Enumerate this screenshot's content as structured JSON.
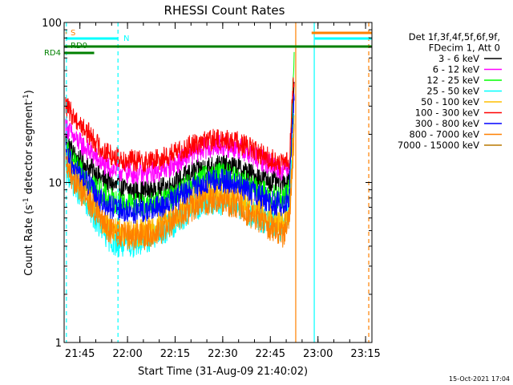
{
  "chart_data": {
    "type": "line",
    "title": "RHESSI Count Rates",
    "xlabel": "Start Time (31-Aug-09 21:40:02)",
    "ylabel_main": "Count Rate (s",
    "ylabel_sup1": "-1",
    "ylabel_mid": " detector segment",
    "ylabel_sup2": "-1",
    "ylabel_end": ")",
    "yscale": "log",
    "ylim": [
      1,
      100
    ],
    "xlim": [
      "21:40:02",
      "23:17:00"
    ],
    "x_ticks": [
      "21:45",
      "22:00",
      "22:15",
      "22:30",
      "22:45",
      "23:00",
      "23:15"
    ],
    "y_ticks": [
      "1",
      "10",
      "100"
    ],
    "timestamp": "15-Oct-2021 17:04",
    "legend": {
      "placement": "right",
      "header": [
        "Det 1f,3f,4f,5f,6f,9f,",
        "FDecim 1, Att 0"
      ],
      "entries": [
        {
          "label": "3 - 6 keV",
          "color": "#000000"
        },
        {
          "label": "6 - 12 keV",
          "color": "#ff00ff"
        },
        {
          "label": "12 - 25 keV",
          "color": "#00ff00"
        },
        {
          "label": "25 - 50 keV",
          "color": "#00ffff"
        },
        {
          "label": "50 - 100 keV",
          "color": "#ffbf00"
        },
        {
          "label": "100 - 300 keV",
          "color": "#ff0000"
        },
        {
          "label": "300 - 800 keV",
          "color": "#0000ff"
        },
        {
          "label": "800 - 7000 keV",
          "color": "#ff8000"
        },
        {
          "label": "7000 - 15000 keV",
          "color": "#b87800"
        }
      ]
    },
    "flags": [
      {
        "label": "S",
        "color": "#ff8000",
        "segments": [
          [
            "21:40:30",
            "21:40:45"
          ],
          [
            "22:58:00",
            "23:17:00"
          ]
        ]
      },
      {
        "label": "N",
        "color": "#00ffff",
        "segments": [
          [
            "21:40:30",
            "21:57:00"
          ],
          [
            "22:59:00",
            "23:17:00"
          ]
        ]
      },
      {
        "label": "RD0",
        "color": "#008000",
        "segments": [
          [
            "21:40:02",
            "23:17:00"
          ]
        ]
      },
      {
        "label": "RD4",
        "color": "#008000",
        "segments": [
          [
            "21:40:02",
            "21:49:30"
          ]
        ]
      }
    ],
    "vertical_markers": [
      {
        "time": "21:40:45",
        "color": "#00ffff",
        "style": "dashed"
      },
      {
        "time": "21:57:00",
        "color": "#00ffff",
        "style": "dashed"
      },
      {
        "time": "22:53:00",
        "color": "#ff8000",
        "style": "solid"
      },
      {
        "time": "22:58:50",
        "color": "#00ffff",
        "style": "solid"
      },
      {
        "time": "23:16:00",
        "color": "#ff8000",
        "style": "dashed"
      }
    ],
    "series": [
      {
        "name": "3 - 6 keV",
        "color": "#000000",
        "noise": 0.07,
        "points": [
          [
            "21:40:30",
            19
          ],
          [
            "21:43:00",
            15
          ],
          [
            "21:46:00",
            13
          ],
          [
            "21:49:00",
            12
          ],
          [
            "21:52:00",
            10.5
          ],
          [
            "21:56:00",
            9.5
          ],
          [
            "22:00:00",
            9
          ],
          [
            "22:05:00",
            8.8
          ],
          [
            "22:10:00",
            9
          ],
          [
            "22:15:00",
            10
          ],
          [
            "22:20:00",
            11.5
          ],
          [
            "22:25:00",
            12.5
          ],
          [
            "22:30:00",
            12.8
          ],
          [
            "22:35:00",
            12.3
          ],
          [
            "22:40:00",
            11
          ],
          [
            "22:45:00",
            10.2
          ],
          [
            "22:49:00",
            9.8
          ],
          [
            "22:51:00",
            11
          ],
          [
            "22:52:00",
            25
          ],
          [
            "22:52:30",
            40
          ]
        ]
      },
      {
        "name": "6 - 12 keV",
        "color": "#ff00ff",
        "noise": 0.07,
        "points": [
          [
            "21:40:30",
            23
          ],
          [
            "21:43:00",
            19
          ],
          [
            "21:46:00",
            17
          ],
          [
            "21:49:00",
            15
          ],
          [
            "21:52:00",
            13
          ],
          [
            "21:56:00",
            12
          ],
          [
            "22:00:00",
            11.5
          ],
          [
            "22:05:00",
            11.2
          ],
          [
            "22:10:00",
            11.8
          ],
          [
            "22:15:00",
            13
          ],
          [
            "22:20:00",
            15
          ],
          [
            "22:25:00",
            16.5
          ],
          [
            "22:30:00",
            17
          ],
          [
            "22:35:00",
            16.3
          ],
          [
            "22:40:00",
            14.5
          ],
          [
            "22:45:00",
            13
          ],
          [
            "22:49:00",
            12
          ],
          [
            "22:51:00",
            13
          ],
          [
            "22:52:00",
            30
          ],
          [
            "22:52:30",
            38
          ]
        ]
      },
      {
        "name": "12 - 25 keV",
        "color": "#00ff00",
        "noise": 0.08,
        "points": [
          [
            "21:40:30",
            16
          ],
          [
            "21:43:00",
            13
          ],
          [
            "21:46:00",
            11
          ],
          [
            "21:49:00",
            10
          ],
          [
            "21:52:00",
            8.5
          ],
          [
            "21:56:00",
            7.5
          ],
          [
            "22:00:00",
            7.3
          ],
          [
            "22:05:00",
            7.2
          ],
          [
            "22:10:00",
            7.5
          ],
          [
            "22:15:00",
            8.3
          ],
          [
            "22:20:00",
            9.8
          ],
          [
            "22:25:00",
            11
          ],
          [
            "22:30:00",
            11.2
          ],
          [
            "22:35:00",
            10.6
          ],
          [
            "22:40:00",
            9.2
          ],
          [
            "22:45:00",
            8.2
          ],
          [
            "22:49:00",
            7.8
          ],
          [
            "22:51:00",
            9
          ],
          [
            "22:52:00",
            35
          ],
          [
            "22:52:30",
            70
          ]
        ]
      },
      {
        "name": "25 - 50 keV",
        "color": "#00ffff",
        "noise": 0.09,
        "points": [
          [
            "21:40:30",
            12
          ],
          [
            "21:43:00",
            10
          ],
          [
            "21:46:00",
            8
          ],
          [
            "21:49:00",
            6.5
          ],
          [
            "21:52:00",
            5
          ],
          [
            "21:56:00",
            4.2
          ],
          [
            "22:00:00",
            4.1
          ],
          [
            "22:05:00",
            4.3
          ],
          [
            "22:10:00",
            4.8
          ],
          [
            "22:15:00",
            5.6
          ],
          [
            "22:20:00",
            6.8
          ],
          [
            "22:25:00",
            7.6
          ],
          [
            "22:30:00",
            7.7
          ],
          [
            "22:35:00",
            7.2
          ],
          [
            "22:40:00",
            6.2
          ],
          [
            "22:45:00",
            5.5
          ],
          [
            "22:49:00",
            5.2
          ],
          [
            "22:51:00",
            6.5
          ],
          [
            "22:52:00",
            18
          ],
          [
            "22:52:30",
            25
          ]
        ]
      },
      {
        "name": "50 - 100 keV",
        "color": "#ffbf00",
        "noise": 0.09,
        "points": [
          [
            "21:40:30",
            14
          ],
          [
            "21:43:00",
            11.5
          ],
          [
            "21:46:00",
            9
          ],
          [
            "21:49:00",
            7.3
          ],
          [
            "21:52:00",
            5.8
          ],
          [
            "21:56:00",
            5
          ],
          [
            "22:00:00",
            4.8
          ],
          [
            "22:05:00",
            4.9
          ],
          [
            "22:10:00",
            5.4
          ],
          [
            "22:15:00",
            6.3
          ],
          [
            "22:20:00",
            7.6
          ],
          [
            "22:25:00",
            8.5
          ],
          [
            "22:30:00",
            8.6
          ],
          [
            "22:35:00",
            8
          ],
          [
            "22:40:00",
            6.9
          ],
          [
            "22:45:00",
            6
          ],
          [
            "22:49:00",
            5.6
          ],
          [
            "22:51:00",
            6.8
          ],
          [
            "22:52:00",
            16
          ],
          [
            "22:52:30",
            22
          ]
        ]
      },
      {
        "name": "100 - 300 keV",
        "color": "#ff0000",
        "noise": 0.07,
        "points": [
          [
            "21:40:30",
            30
          ],
          [
            "21:43:00",
            26
          ],
          [
            "21:46:00",
            22
          ],
          [
            "21:49:00",
            19
          ],
          [
            "21:52:00",
            16
          ],
          [
            "21:56:00",
            14.5
          ],
          [
            "22:00:00",
            13.8
          ],
          [
            "22:05:00",
            13.5
          ],
          [
            "22:10:00",
            14
          ],
          [
            "22:15:00",
            15.2
          ],
          [
            "22:20:00",
            17
          ],
          [
            "22:25:00",
            18.3
          ],
          [
            "22:30:00",
            18.5
          ],
          [
            "22:35:00",
            17.8
          ],
          [
            "22:40:00",
            15.8
          ],
          [
            "22:45:00",
            14
          ],
          [
            "22:49:00",
            12.8
          ],
          [
            "22:51:00",
            14
          ],
          [
            "22:52:00",
            35
          ],
          [
            "22:52:30",
            45
          ]
        ]
      },
      {
        "name": "300 - 800 keV",
        "color": "#0000ff",
        "noise": 0.08,
        "points": [
          [
            "21:40:30",
            15
          ],
          [
            "21:43:00",
            12.5
          ],
          [
            "21:46:00",
            10.5
          ],
          [
            "21:49:00",
            9
          ],
          [
            "21:52:00",
            7.5
          ],
          [
            "21:56:00",
            6.8
          ],
          [
            "22:00:00",
            6.6
          ],
          [
            "22:05:00",
            6.6
          ],
          [
            "22:10:00",
            7
          ],
          [
            "22:15:00",
            7.8
          ],
          [
            "22:20:00",
            9
          ],
          [
            "22:25:00",
            10
          ],
          [
            "22:30:00",
            10.2
          ],
          [
            "22:35:00",
            9.6
          ],
          [
            "22:40:00",
            8.4
          ],
          [
            "22:45:00",
            7.6
          ],
          [
            "22:49:00",
            7.2
          ],
          [
            "22:51:00",
            8.5
          ],
          [
            "22:52:00",
            25
          ],
          [
            "22:52:30",
            32
          ]
        ]
      },
      {
        "name": "800 - 7000 keV",
        "color": "#ff8000",
        "noise": 0.09,
        "points": [
          [
            "21:40:30",
            12.5
          ],
          [
            "21:43:00",
            10.5
          ],
          [
            "21:46:00",
            8.5
          ],
          [
            "21:49:00",
            7
          ],
          [
            "21:52:00",
            5.6
          ],
          [
            "21:56:00",
            4.8
          ],
          [
            "22:00:00",
            4.6
          ],
          [
            "22:05:00",
            4.6
          ],
          [
            "22:10:00",
            5
          ],
          [
            "22:15:00",
            5.8
          ],
          [
            "22:20:00",
            6.9
          ],
          [
            "22:25:00",
            7.6
          ],
          [
            "22:30:00",
            7.7
          ],
          [
            "22:35:00",
            7.1
          ],
          [
            "22:40:00",
            6.1
          ],
          [
            "22:45:00",
            5.3
          ],
          [
            "22:49:00",
            4.8
          ],
          [
            "22:51:00",
            6
          ],
          [
            "22:52:00",
            14
          ],
          [
            "22:52:30",
            20
          ]
        ]
      }
    ]
  }
}
